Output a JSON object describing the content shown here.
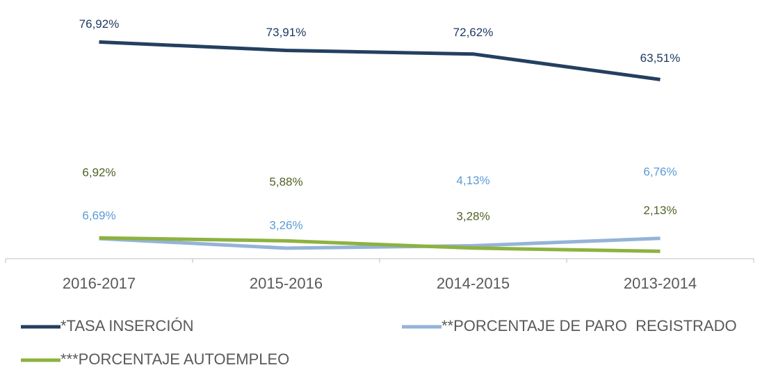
{
  "chart_data": {
    "type": "line",
    "categories": [
      "2016-2017",
      "2015-2016",
      "2014-2015",
      "2013-2014"
    ],
    "series": [
      {
        "name": "*TASA INSERCIÓN",
        "color": "#243f60",
        "values": [
          76.92,
          73.91,
          72.62,
          63.51
        ],
        "value_labels": [
          "76,92%",
          "73,91%",
          "72,62%",
          "63,51%"
        ]
      },
      {
        "name": "**PORCENTAJE DE PARO  REGISTRADO",
        "color": "#95b3d7",
        "values": [
          6.69,
          3.26,
          4.13,
          6.76
        ],
        "value_labels": [
          "6,69%",
          "3,26%",
          "4,13%",
          "6,76%"
        ]
      },
      {
        "name": "***PORCENTAJE AUTOEMPLEO",
        "color": "#8db23f",
        "values": [
          6.92,
          5.88,
          3.28,
          2.13
        ],
        "value_labels": [
          "6,92%",
          "5,88%",
          "3,28%",
          "2,13%"
        ]
      }
    ],
    "ylim": [
      0,
      80
    ]
  }
}
